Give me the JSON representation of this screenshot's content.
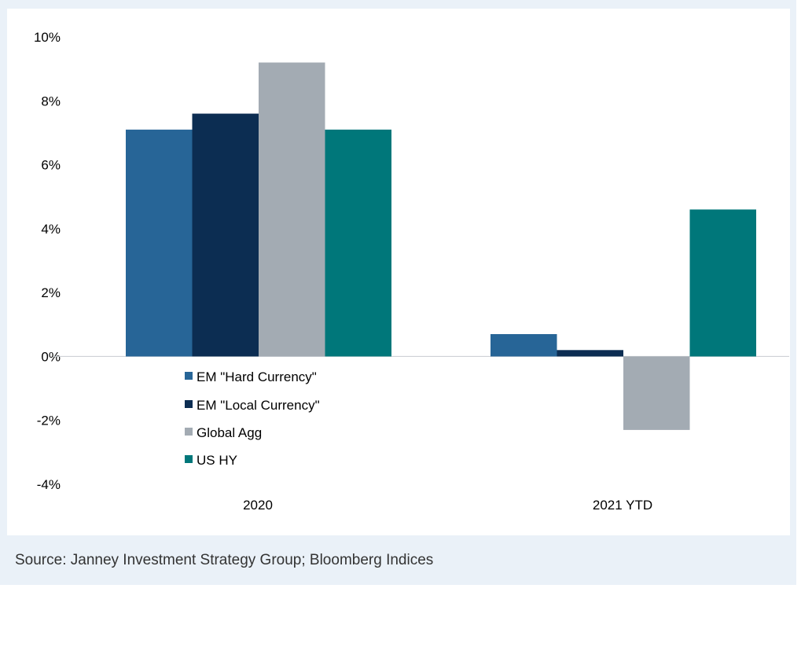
{
  "chart_data": {
    "type": "bar",
    "categories": [
      "2020",
      "2021 YTD"
    ],
    "series": [
      {
        "name": "EM \"Hard Currency\"",
        "color": "#276597",
        "values": [
          7.1,
          0.7
        ]
      },
      {
        "name": "EM \"Local Currency\"",
        "color": "#0c2d52",
        "values": [
          7.6,
          0.2
        ]
      },
      {
        "name": "Global Agg",
        "color": "#a3abb3",
        "values": [
          9.2,
          -2.3
        ]
      },
      {
        "name": "US HY",
        "color": "#00777a",
        "values": [
          7.1,
          4.6
        ]
      }
    ],
    "yticks": [
      "10%",
      "8%",
      "6%",
      "4%",
      "2%",
      "0%",
      "-2%",
      "-4%"
    ],
    "ylim": [
      -4,
      10
    ],
    "legend_position": "center-left",
    "title": "",
    "xlabel": "",
    "ylabel": ""
  },
  "source": "Source: Janney Investment Strategy Group; Bloomberg Indices"
}
